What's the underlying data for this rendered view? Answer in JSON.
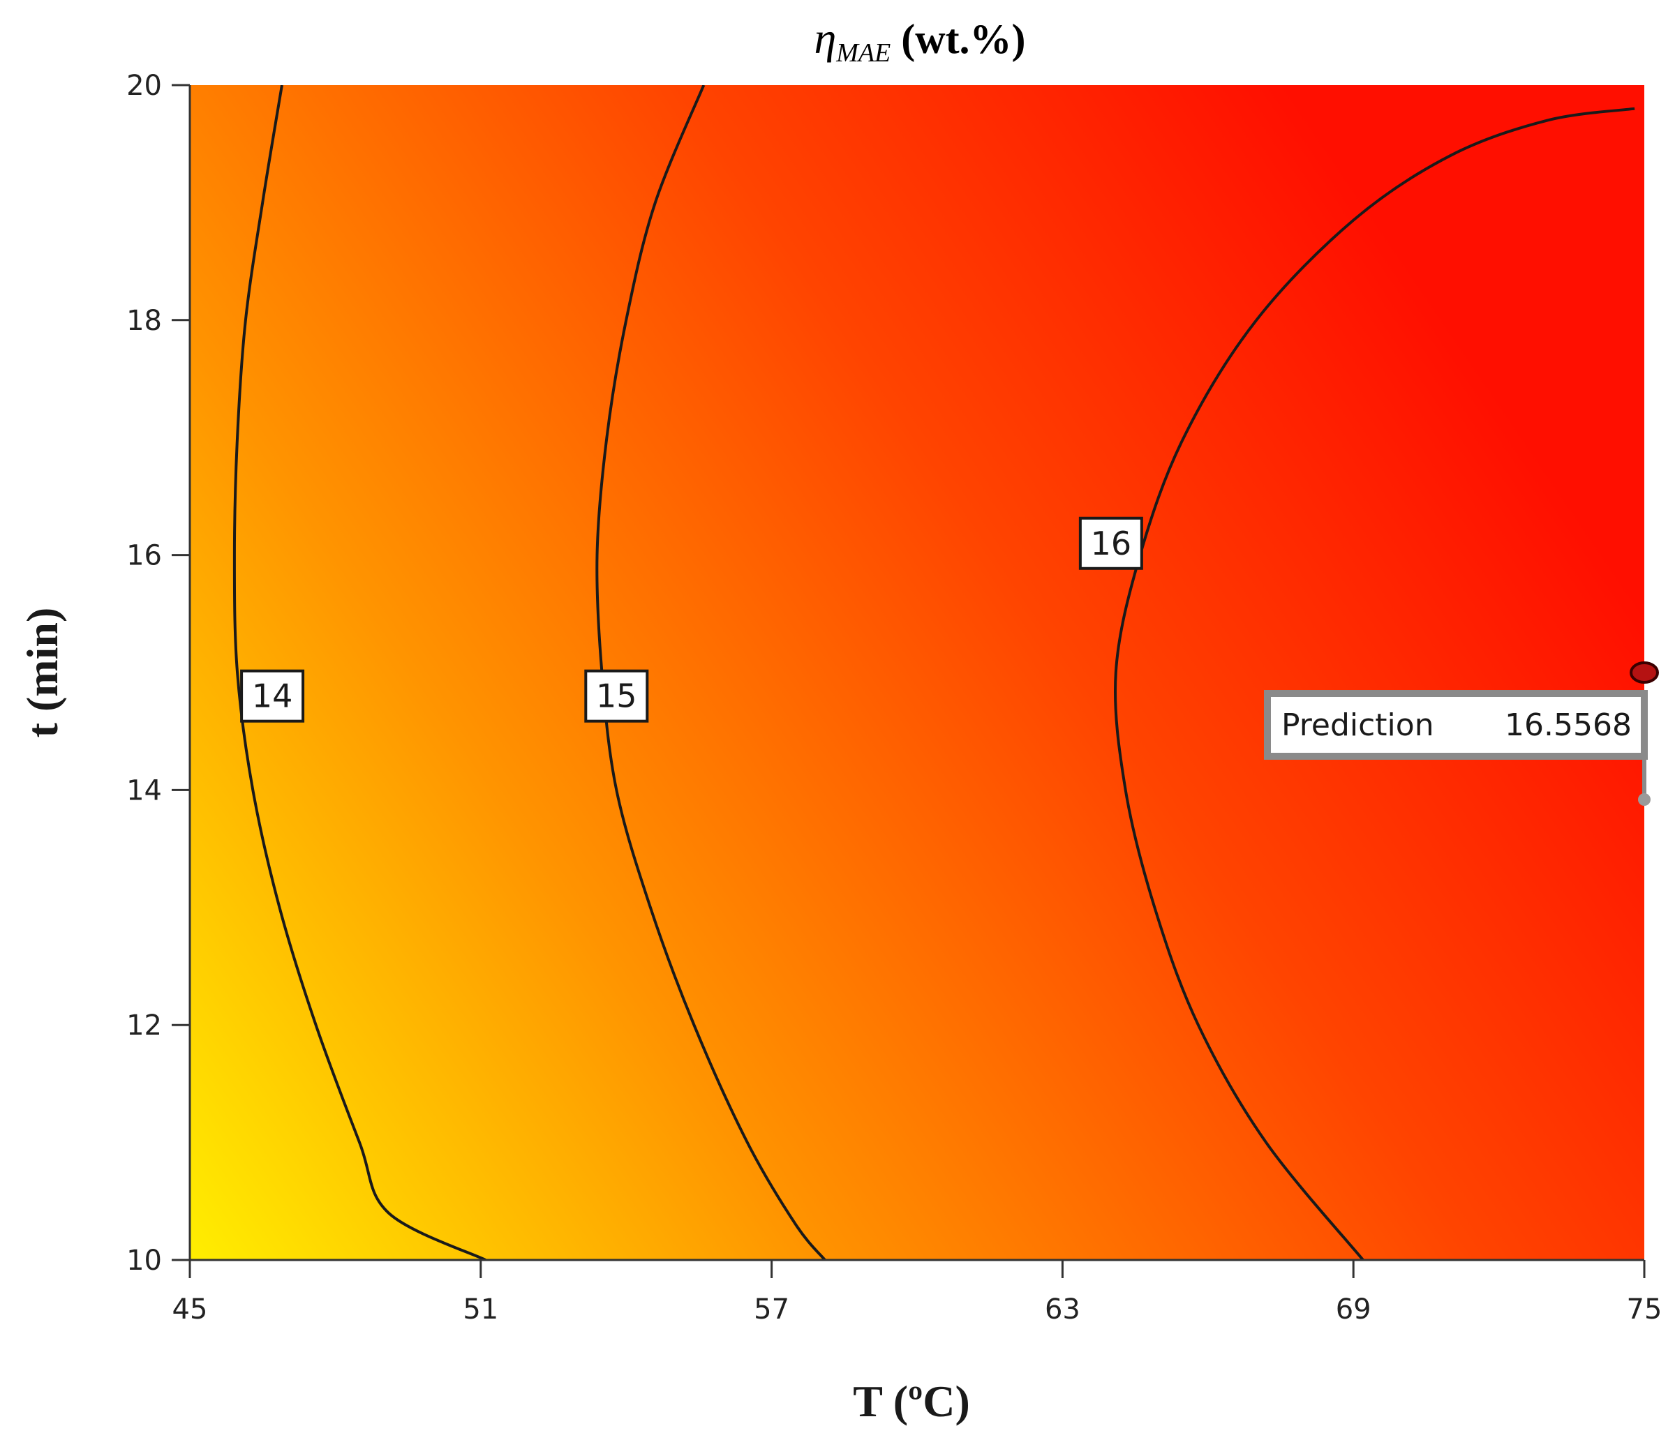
{
  "chart_data": {
    "type": "contour",
    "title_symbol": "η",
    "title_subscript": "MAE",
    "title_unit": " (wt.%)",
    "xlabel": "T (ºC)",
    "ylabel": "t (min)",
    "xlim": [
      45,
      75
    ],
    "ylim": [
      10,
      20
    ],
    "xticks": [
      45,
      51,
      57,
      63,
      69,
      75
    ],
    "yticks": [
      10,
      12,
      14,
      16,
      18,
      20
    ],
    "colormap": [
      "#ffee00",
      "#ff9400",
      "#ff4400",
      "#ff0f00"
    ],
    "contours": [
      {
        "level": 14,
        "label": "14",
        "label_at": [
          46.7,
          14.8
        ],
        "points": [
          [
            46.9,
            20
          ],
          [
            46.5,
            19
          ],
          [
            46.15,
            18
          ],
          [
            45.98,
            17
          ],
          [
            45.92,
            16
          ],
          [
            45.98,
            15
          ],
          [
            46.3,
            14
          ],
          [
            46.85,
            13
          ],
          [
            47.6,
            12
          ],
          [
            48.5,
            11
          ],
          [
            49.1,
            10.4
          ],
          [
            51.1,
            10
          ]
        ]
      },
      {
        "level": 15,
        "label": "15",
        "label_at": [
          53.8,
          14.8
        ],
        "points": [
          [
            55.6,
            20
          ],
          [
            54.6,
            19
          ],
          [
            54.0,
            18
          ],
          [
            53.6,
            17
          ],
          [
            53.4,
            16
          ],
          [
            53.5,
            15
          ],
          [
            53.8,
            14
          ],
          [
            54.5,
            13
          ],
          [
            55.4,
            12
          ],
          [
            56.5,
            11
          ],
          [
            57.5,
            10.3
          ],
          [
            58.1,
            10
          ]
        ]
      },
      {
        "level": 16,
        "label": "16",
        "label_at": [
          64.0,
          16.1
        ],
        "points": [
          [
            74.8,
            19.8
          ],
          [
            73.0,
            19.7
          ],
          [
            71.0,
            19.4
          ],
          [
            69.0,
            18.85
          ],
          [
            67.0,
            18.0
          ],
          [
            65.5,
            17.0
          ],
          [
            64.6,
            16.0
          ],
          [
            64.1,
            15.0
          ],
          [
            64.3,
            14.0
          ],
          [
            64.9,
            13.0
          ],
          [
            65.8,
            12.0
          ],
          [
            67.2,
            11.0
          ],
          [
            69.2,
            10.0
          ]
        ]
      }
    ],
    "prediction": {
      "label": "Prediction",
      "value": "16.5568",
      "x": 75,
      "y": 15
    }
  }
}
